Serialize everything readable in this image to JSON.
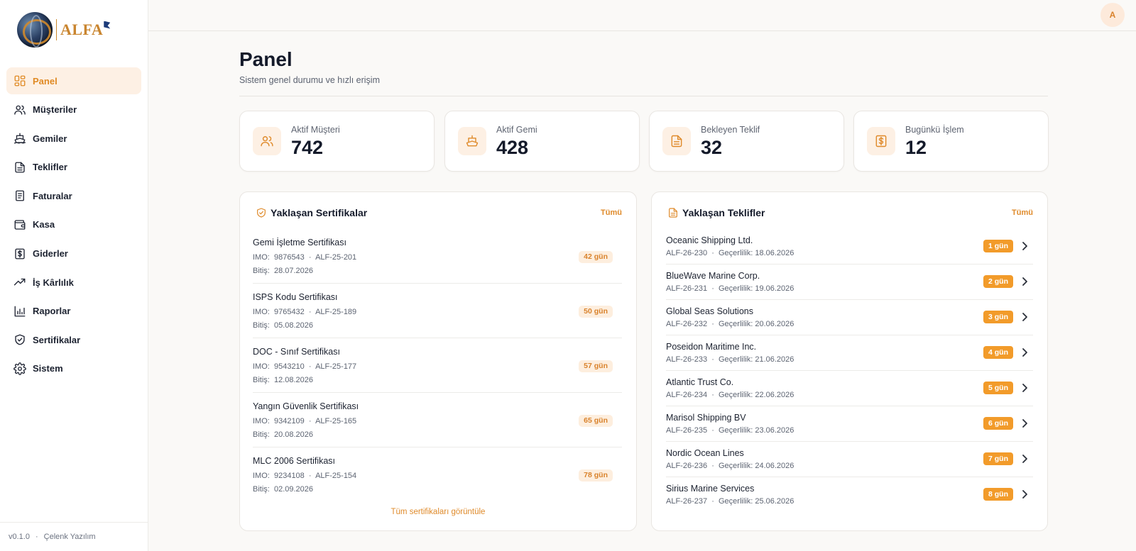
{
  "brand": {
    "name": "ALFA"
  },
  "sidebar": {
    "items": [
      {
        "label": "Panel",
        "icon": "grid-icon"
      },
      {
        "label": "Müşteriler",
        "icon": "users-icon"
      },
      {
        "label": "Gemiler",
        "icon": "ship-icon"
      },
      {
        "label": "Teklifler",
        "icon": "file-text-icon"
      },
      {
        "label": "Faturalar",
        "icon": "receipt-icon"
      },
      {
        "label": "Kasa",
        "icon": "wallet-icon"
      },
      {
        "label": "Giderler",
        "icon": "dollar-icon"
      },
      {
        "label": "İş Kârlılık",
        "icon": "trending-up-icon"
      },
      {
        "label": "Raporlar",
        "icon": "bar-chart-icon"
      },
      {
        "label": "Sertifikalar",
        "icon": "shield-check-icon"
      },
      {
        "label": "Sistem",
        "icon": "gear-icon"
      }
    ],
    "footer": {
      "version": "v0.1.0",
      "company": "Çelenk Yazılım"
    }
  },
  "topbar": {
    "avatar_initial": "A"
  },
  "header": {
    "title": "Panel",
    "subtitle": "Sistem genel durumu ve hızlı erişim"
  },
  "stats": [
    {
      "label": "Aktif Müşteri",
      "value": "742",
      "icon": "users-icon"
    },
    {
      "label": "Aktif Gemi",
      "value": "428",
      "icon": "ship-icon"
    },
    {
      "label": "Bekleyen Teklif",
      "value": "32",
      "icon": "file-text-icon"
    },
    {
      "label": "Bugünkü İşlem",
      "value": "12",
      "icon": "dollar-icon"
    }
  ],
  "certificates": {
    "title": "Yaklaşan Sertifikalar",
    "all_label": "Tümü",
    "view_all_label": "Tüm sertifikaları görüntüle",
    "imo_label": "IMO:",
    "end_label": "Bitiş:",
    "items": [
      {
        "name": "Gemi İşletme Sertifikası",
        "imo": "9876543",
        "code": "ALF-25-201",
        "end": "28.07.2026",
        "days": "42 gün"
      },
      {
        "name": "ISPS Kodu Sertifikası",
        "imo": "9765432",
        "code": "ALF-25-189",
        "end": "05.08.2026",
        "days": "50 gün"
      },
      {
        "name": "DOC - Sınıf Sertifikası",
        "imo": "9543210",
        "code": "ALF-25-177",
        "end": "12.08.2026",
        "days": "57 gün"
      },
      {
        "name": "Yangın Güvenlik Sertifikası",
        "imo": "9342109",
        "code": "ALF-25-165",
        "end": "20.08.2026",
        "days": "65 gün"
      },
      {
        "name": "MLC 2006 Sertifikası",
        "imo": "9234108",
        "code": "ALF-25-154",
        "end": "02.09.2026",
        "days": "78 gün"
      }
    ]
  },
  "offers": {
    "title": "Yaklaşan Teklifler",
    "all_label": "Tümü",
    "validity_label": "Geçerlilik:",
    "items": [
      {
        "name": "Oceanic Shipping Ltd.",
        "code": "ALF-26-230",
        "valid": "18.06.2026",
        "days": "1 gün"
      },
      {
        "name": "BlueWave Marine Corp.",
        "code": "ALF-26-231",
        "valid": "19.06.2026",
        "days": "2 gün"
      },
      {
        "name": "Global Seas Solutions",
        "code": "ALF-26-232",
        "valid": "20.06.2026",
        "days": "3 gün"
      },
      {
        "name": "Poseidon Maritime Inc.",
        "code": "ALF-26-233",
        "valid": "21.06.2026",
        "days": "4 gün"
      },
      {
        "name": "Atlantic Trust Co.",
        "code": "ALF-26-234",
        "valid": "22.06.2026",
        "days": "5 gün"
      },
      {
        "name": "Marisol Shipping BV",
        "code": "ALF-26-235",
        "valid": "23.06.2026",
        "days": "6 gün"
      },
      {
        "name": "Nordic Ocean Lines",
        "code": "ALF-26-236",
        "valid": "24.06.2026",
        "days": "7 gün"
      },
      {
        "name": "Sirius Marine Services",
        "code": "ALF-26-237",
        "valid": "25.06.2026",
        "days": "8 gün"
      }
    ]
  }
}
